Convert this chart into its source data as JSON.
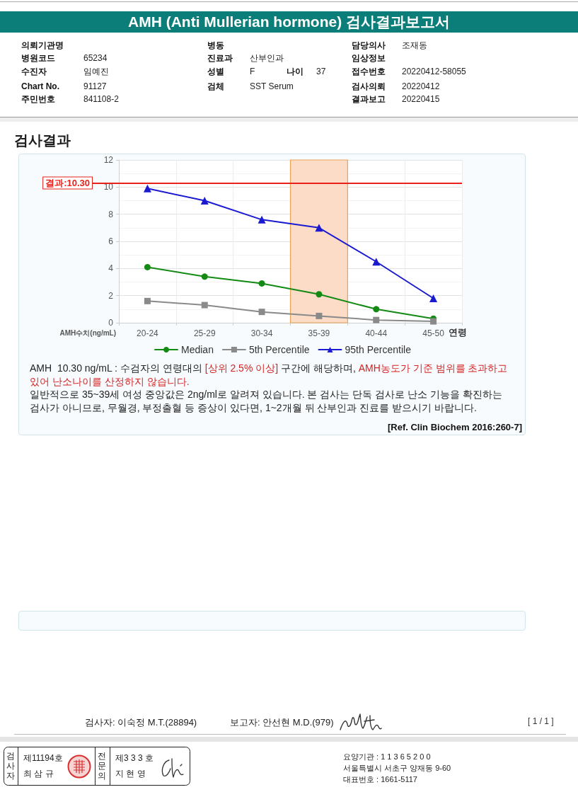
{
  "chart_data": {
    "type": "line",
    "title": "AMH (Anti Mullerian hormone) 검사결과보고서",
    "subtitle": "검사결과",
    "xlabel": "연령",
    "ylabel": "AMH수치(ng/mL)",
    "categories": [
      "20-24",
      "25-29",
      "30-34",
      "35-39",
      "40-44",
      "45-50"
    ],
    "series": [
      {
        "name": "Median",
        "color": "#138a13",
        "marker": "circle",
        "values": [
          4.1,
          3.4,
          2.9,
          2.1,
          1.0,
          0.3
        ]
      },
      {
        "name": "5th Percentile",
        "color": "#8a8a8a",
        "marker": "square",
        "values": [
          1.6,
          1.3,
          0.8,
          0.5,
          0.2,
          0.1
        ]
      },
      {
        "name": "95th Percentile",
        "color": "#1a1ad0",
        "marker": "triangle",
        "values": [
          9.9,
          9.0,
          7.6,
          7.0,
          4.5,
          1.8
        ]
      }
    ],
    "ylim": [
      0,
      12
    ],
    "yticks": [
      0,
      2,
      4,
      6,
      8,
      10,
      12
    ],
    "grid": true,
    "legend": "bottom",
    "line_style": "solid",
    "ref_lines": [
      {
        "axis": "y",
        "value": 10.3,
        "label": "결과:10.30",
        "color": "#e8211b"
      }
    ],
    "bands": [
      {
        "axis": "x",
        "from": "35-39",
        "to": "35-39",
        "color": "#fcdcc6"
      }
    ],
    "annotations": [
      "의뢰기관명",
      "병원코드",
      "65234",
      "수진자",
      "임예진",
      "Chart No.",
      "91127",
      "주민번호",
      "841108-2",
      "병동",
      "진료과",
      "산부인과",
      "성별",
      "F",
      "나이",
      "37",
      "검체",
      "SST Serum",
      "담당의사",
      "조재동",
      "임상정보",
      "접수번호",
      "20220412-58055",
      "검사의뢰",
      "20220412",
      "결과보고",
      "20220415",
      "AMH  10.30 ng/mL : 수검자의 연령대의 ",
      "[상위 2.5% 이상]",
      " 구간에 해당하며, ",
      "AMH농도가 기준 범위를 초과하고",
      "있어 난소나이를 산정하지 않습니다.",
      "일반적으로 35~39세 여성 중앙값은 2ng/ml로 알려져 있습니다. 본 검사는 단독 검사로 난소 기능을 확진하는 검사가 아니므로, 무월경, 부정출혈 등 증상이 있다면, 1~2개월 뒤 산부인과 진료를 받으시기 바랍니다.",
      "[Ref. Clin Biochem 2016:260-7]",
      "검사자: 이숙정 M.T.(28894)",
      "보고자: 안선현 M.D.(979)",
      "[ 1 / 1 ]",
      "검사자",
      "제11194호",
      "최 삼 규",
      "전문의",
      "제3 3 3 호",
      "지 현 영",
      "요양기관 : 1 1 3 6 5 2 0 0",
      "서울특별시 서초구 양재동 9-60",
      "대표번호 : 1661-5117"
    ]
  }
}
